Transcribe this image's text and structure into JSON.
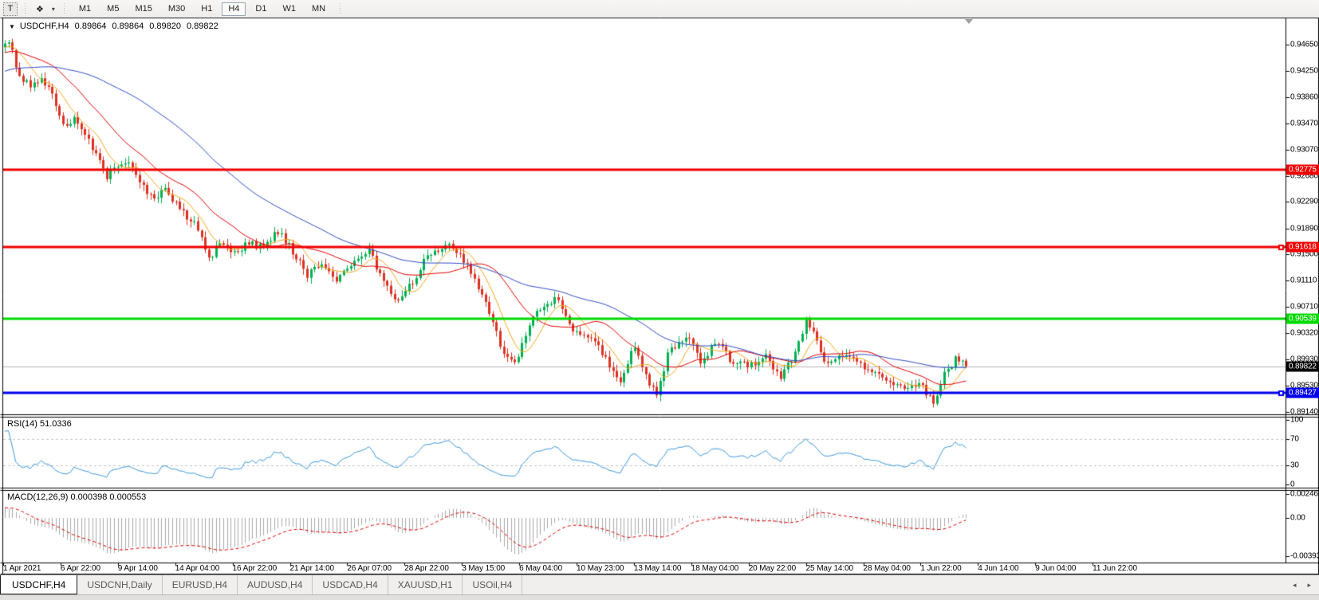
{
  "toolbar": {
    "text_tool_label": "T",
    "style_icon": "❖",
    "dropdown_caret": "▾",
    "timeframes": [
      "M1",
      "M5",
      "M15",
      "M30",
      "H1",
      "H4",
      "D1",
      "W1",
      "MN"
    ],
    "active_timeframe": "H4"
  },
  "chart_header": {
    "collapse_icon": "▼",
    "symbol": "USDCHF,H4",
    "open": "0.89864",
    "high": "0.89864",
    "low": "0.89820",
    "close": "0.89822"
  },
  "price_axis": {
    "ticks": [
      "0.94650",
      "0.94250",
      "0.93860",
      "0.93470",
      "0.93070",
      "0.92680",
      "0.92290",
      "0.91890",
      "0.91500",
      "0.91110",
      "0.90710",
      "0.90320",
      "0.89930",
      "0.89530",
      "0.89140"
    ]
  },
  "hlines": [
    {
      "price": 0.92775,
      "label": "0.92775",
      "color": "#f20000",
      "marker": false
    },
    {
      "price": 0.91618,
      "label": "0.91618",
      "color": "#f20000",
      "marker": true
    },
    {
      "price": 0.90539,
      "label": "0.90539",
      "color": "#00da00",
      "marker": false
    },
    {
      "price": 0.89427,
      "label": "0.89427",
      "color": "#0000ee",
      "marker": true
    }
  ],
  "current_price": {
    "value": 0.89822,
    "label": "0.89822",
    "line_color": "#b6b6b6",
    "badge_bg": "#000000"
  },
  "x_axis": {
    "labels": [
      "1 Apr 2021",
      "6 Apr 22:00",
      "9 Apr 14:00",
      "14 Apr 04:00",
      "16 Apr 22:00",
      "21 Apr 14:00",
      "26 Apr 07:00",
      "28 Apr 22:00",
      "3 May 15:00",
      "6 May 04:00",
      "10 May 23:00",
      "13 May 14:00",
      "18 May 04:00",
      "20 May 22:00",
      "25 May 14:00",
      "28 May 04:00",
      "1 Jun 22:00",
      "4 Jun 14:00",
      "9 Jun 04:00",
      "11 Jun 22:00"
    ]
  },
  "rsi_panel": {
    "title": "RSI(14) 51.0336",
    "ticks": [
      {
        "label": "100",
        "value": 100
      },
      {
        "label": "70",
        "value": 70
      },
      {
        "label": "30",
        "value": 30
      },
      {
        "label": "0",
        "value": 0
      }
    ],
    "levels": [
      70,
      30
    ],
    "line_color": "#3c99dc"
  },
  "macd_panel": {
    "title": "MACD(12,26,9) 0.000398 0.000553",
    "ticks": [
      {
        "label": "0.002465",
        "value": 0.002465
      },
      {
        "label": "0.00",
        "value": 0
      },
      {
        "label": "-0.003935",
        "value": -0.003935
      }
    ],
    "hist_color": "#aaaaaa",
    "signal_color": "#e00000"
  },
  "tabs": {
    "items": [
      "USDCHF,H4",
      "USDCNH,Daily",
      "EURUSD,H4",
      "AUDUSD,H4",
      "USDCAD,H4",
      "XAUUSD,H1",
      "USOil,H4"
    ],
    "active": "USDCHF,H4",
    "scroll_left": "◂",
    "scroll_right": "▸"
  },
  "chart_data": {
    "type": "candlestick",
    "symbol": "USDCHF",
    "timeframe": "H4",
    "bars_count": 265,
    "ylim": [
      0.8911,
      0.9502
    ],
    "support_resistance": [
      0.92775,
      0.91618,
      0.90539,
      0.89427
    ],
    "last_close": 0.89822,
    "close_path_anchors": [
      [
        0,
        0.9462
      ],
      [
        1,
        0.9472
      ],
      [
        4,
        0.9415
      ],
      [
        7,
        0.9405
      ],
      [
        10,
        0.9412
      ],
      [
        13,
        0.939
      ],
      [
        16,
        0.9341
      ],
      [
        19,
        0.9352
      ],
      [
        22,
        0.933
      ],
      [
        25,
        0.93
      ],
      [
        28,
        0.9268
      ],
      [
        31,
        0.9282
      ],
      [
        34,
        0.9292
      ],
      [
        37,
        0.9255
      ],
      [
        41,
        0.9235
      ],
      [
        44,
        0.9248
      ],
      [
        47,
        0.9225
      ],
      [
        50,
        0.9208
      ],
      [
        53,
        0.919
      ],
      [
        56,
        0.914
      ],
      [
        59,
        0.9168
      ],
      [
        63,
        0.915
      ],
      [
        67,
        0.917
      ],
      [
        71,
        0.9158
      ],
      [
        75,
        0.9185
      ],
      [
        79,
        0.9155
      ],
      [
        83,
        0.912
      ],
      [
        87,
        0.9138
      ],
      [
        91,
        0.9112
      ],
      [
        95,
        0.913
      ],
      [
        100,
        0.916
      ],
      [
        104,
        0.9105
      ],
      [
        108,
        0.9078
      ],
      [
        112,
        0.911
      ],
      [
        116,
        0.9148
      ],
      [
        122,
        0.9163
      ],
      [
        127,
        0.9135
      ],
      [
        132,
        0.908
      ],
      [
        137,
        0.9
      ],
      [
        140,
        0.8985
      ],
      [
        145,
        0.906
      ],
      [
        151,
        0.9085
      ],
      [
        156,
        0.904
      ],
      [
        161,
        0.9028
      ],
      [
        166,
        0.8985
      ],
      [
        169,
        0.8958
      ],
      [
        173,
        0.9015
      ],
      [
        177,
        0.8955
      ],
      [
        179,
        0.8938
      ],
      [
        182,
        0.9
      ],
      [
        187,
        0.903
      ],
      [
        191,
        0.899
      ],
      [
        196,
        0.902
      ],
      [
        199,
        0.899
      ],
      [
        204,
        0.8985
      ],
      [
        209,
        0.8995
      ],
      [
        213,
        0.8968
      ],
      [
        217,
        0.9
      ],
      [
        220,
        0.905
      ],
      [
        222,
        0.904
      ],
      [
        225,
        0.8985
      ],
      [
        229,
        0.9
      ],
      [
        234,
        0.899
      ],
      [
        239,
        0.897
      ],
      [
        243,
        0.896
      ],
      [
        247,
        0.8952
      ],
      [
        251,
        0.8958
      ],
      [
        255,
        0.893
      ],
      [
        258,
        0.897
      ],
      [
        261,
        0.8992
      ],
      [
        264,
        0.89822
      ]
    ],
    "ma_periods": [
      8,
      21,
      55
    ],
    "colors": {
      "bull": "#00b050",
      "bear": "#dc3222",
      "ma_fast": "#f5a81e",
      "ma_mid": "#e00000",
      "ma_slow": "#2e4cc8"
    }
  }
}
